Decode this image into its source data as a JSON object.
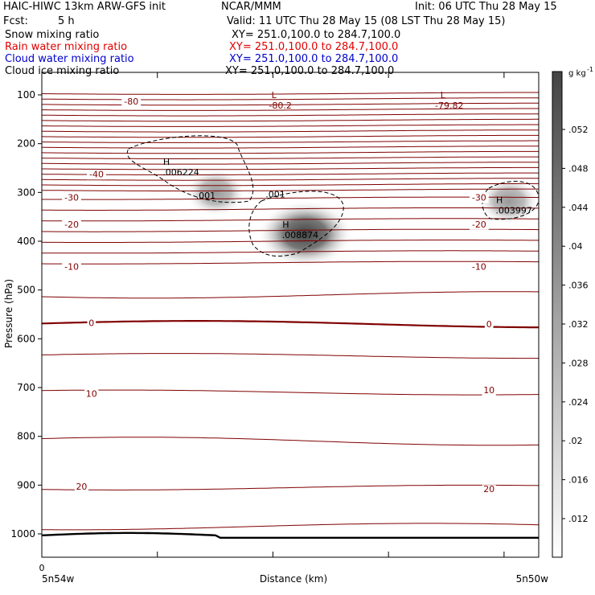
{
  "header": {
    "model": "HAIC-HIWC 13km ARW-GFS init",
    "center": "NCAR/MMM",
    "init": "Init: 06 UTC Thu 28 May 15",
    "fcst_label": "Fcst:",
    "fcst_value": "5 h",
    "valid": "Valid: 11 UTC Thu 28 May 15 (08 LST Thu 28 May 15)",
    "fields": [
      {
        "name": "Snow mixing ratio",
        "xy": "XY= 251.0,100.0 to 284.7,100.0",
        "color": "#000000"
      },
      {
        "name": "Rain water mixing ratio",
        "xy": "XY= 251.0,100.0 to 284.7,100.0",
        "color": "#e00000"
      },
      {
        "name": "Cloud water mixing ratio",
        "xy": "XY= 251.0,100.0 to 284.7,100.0",
        "color": "#0000cc"
      },
      {
        "name": "Cloud ice mixing ratio",
        "xy": "XY= 251.0,100.0 to 284.7,100.0",
        "color": "#000000"
      }
    ]
  },
  "colorbar": {
    "unit": "g kg",
    "unit_sup": "-1",
    "ticks": [
      ".052",
      ".048",
      ".044",
      ".04",
      ".036",
      ".032",
      ".028",
      ".024",
      ".02",
      ".016",
      ".012"
    ]
  },
  "chart_data": {
    "type": "contour",
    "xlabel": "Distance (km)",
    "ylabel": "Pressure (hPa)",
    "x_tick_label": "0",
    "x_start_label": "5n54w",
    "x_end_label": "5n50w",
    "yticks": [
      100,
      200,
      300,
      400,
      500,
      600,
      700,
      800,
      900,
      1000
    ],
    "ylim": [
      1050,
      50
    ],
    "temperature_contour_labels": [
      {
        "text": "-80",
        "p": 113,
        "xf": 0.18
      },
      {
        "text": "-40",
        "p": 262,
        "xf": 0.11
      },
      {
        "text": "-30",
        "p": 310,
        "xf": 0.06
      },
      {
        "text": "-30",
        "p": 310,
        "xf": 0.88
      },
      {
        "text": "-20",
        "p": 365,
        "xf": 0.06
      },
      {
        "text": "-20",
        "p": 365,
        "xf": 0.88
      },
      {
        "text": "-10",
        "p": 452,
        "xf": 0.06
      },
      {
        "text": "-10",
        "p": 452,
        "xf": 0.88
      },
      {
        "text": "0",
        "p": 567,
        "xf": 0.1
      },
      {
        "text": "0",
        "p": 570,
        "xf": 0.9
      },
      {
        "text": "10",
        "p": 712,
        "xf": 0.1
      },
      {
        "text": "10",
        "p": 705,
        "xf": 0.9
      },
      {
        "text": "20",
        "p": 903,
        "xf": 0.08
      },
      {
        "text": "20",
        "p": 908,
        "xf": 0.9
      }
    ],
    "lows": [
      {
        "mark": "L",
        "value": "-80.2",
        "xf": 0.48,
        "p": 113
      },
      {
        "mark": "L",
        "value": "-79.82",
        "xf": 0.82,
        "p": 113
      }
    ],
    "highs": [
      {
        "mark": "H",
        "value": ".006224",
        "xf": 0.28,
        "p": 252
      },
      {
        "mark": "H",
        "value": ".008874",
        "xf": 0.52,
        "p": 380
      },
      {
        "mark": "H",
        "value": ".003997",
        "xf": 0.95,
        "p": 330
      }
    ],
    "cloud_ice_contour_labels": [
      {
        "text": ".001",
        "xf": 0.33,
        "p": 313
      },
      {
        "text": ".001",
        "xf": 0.47,
        "p": 310
      }
    ],
    "snow_maxima": [
      {
        "xf": 0.53,
        "p": 385,
        "value": 0.048
      },
      {
        "xf": 0.35,
        "p": 300,
        "value": 0.022
      },
      {
        "xf": 0.94,
        "p": 318,
        "value": 0.026
      }
    ]
  }
}
